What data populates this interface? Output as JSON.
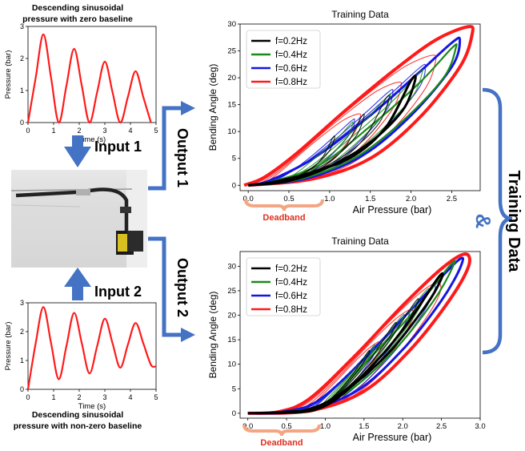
{
  "colors": {
    "red": "#ff1a1a",
    "black": "#000000",
    "green": "#1a8a1a",
    "blue": "#1515e0",
    "arrow_blue": "#4472c4",
    "deadband": "#f4a582",
    "deadband_text": "#e0301e"
  },
  "input1": {
    "caption": [
      "Descending sinusoidal",
      "pressure with zero baseline"
    ],
    "label": "Input 1"
  },
  "input2": {
    "caption": [
      "Descending sinusoidal",
      "pressure with non-zero baseline"
    ],
    "label": "Input 2"
  },
  "output1_label": "Output 1",
  "output2_label": "Output 2",
  "side_label": "Training Data",
  "ampersand": "&",
  "deadband_label": "Deadband",
  "photo": {
    "icon": "soft-actuator-photo"
  },
  "chart_data": [
    {
      "type": "line",
      "id": "input1",
      "xlabel": "Time (s)",
      "ylabel": "Pressure (bar)",
      "xlim": [
        0,
        5
      ],
      "ylim": [
        0,
        3
      ],
      "xticks": [
        "0",
        "1",
        "2",
        "3",
        "4",
        "5"
      ],
      "yticks": [
        "0",
        "1",
        "2",
        "3"
      ],
      "series": [
        {
          "x": [
            0,
            0.3,
            0.6,
            0.9,
            1.2,
            1.5,
            1.8,
            2.1,
            2.4,
            2.7,
            3.0,
            3.3,
            3.6,
            3.9,
            4.2,
            4.5,
            4.8
          ],
          "y": [
            0,
            1.4,
            2.75,
            1.4,
            0,
            1.15,
            2.3,
            1.15,
            0,
            0.95,
            1.9,
            0.95,
            0,
            0.8,
            1.6,
            0.8,
            0
          ]
        }
      ]
    },
    {
      "type": "line",
      "id": "input2",
      "xlabel": "Time (s)",
      "ylabel": "Pressure (bar)",
      "xlim": [
        0,
        5
      ],
      "ylim": [
        0,
        3
      ],
      "xticks": [
        "0",
        "1",
        "2",
        "3",
        "4",
        "5"
      ],
      "yticks": [
        "0",
        "1",
        "2",
        "3"
      ],
      "series": [
        {
          "x": [
            0,
            0.3,
            0.6,
            0.9,
            1.2,
            1.5,
            1.8,
            2.1,
            2.4,
            2.7,
            3.0,
            3.3,
            3.6,
            3.9,
            4.2,
            4.5,
            4.8,
            5.0
          ],
          "y": [
            0,
            1.6,
            2.85,
            1.6,
            0.35,
            1.5,
            2.65,
            1.6,
            0.55,
            1.5,
            2.45,
            1.6,
            0.75,
            1.55,
            2.3,
            1.6,
            0.85,
            0.8
          ]
        }
      ]
    },
    {
      "type": "line",
      "id": "output1",
      "title": "Training Data",
      "xlabel": "Air Pressure (bar)",
      "ylabel": "Bending Angle (deg)",
      "xlim": [
        -0.1,
        2.85
      ],
      "ylim": [
        -1,
        30
      ],
      "xticks": [
        0.0,
        0.5,
        1.0,
        1.5,
        2.0,
        2.5
      ],
      "yticks": [
        0,
        5,
        10,
        15,
        20,
        25,
        30
      ],
      "legend": "top-left",
      "series": [
        {
          "name": "f=0.2Hz",
          "color": "black",
          "width": 3,
          "loop": [
            [
              0,
              0
            ],
            [
              0.3,
              0.6
            ],
            [
              0.8,
              2.5
            ],
            [
              1.3,
              5.5
            ],
            [
              1.7,
              11
            ],
            [
              2.0,
              19.5
            ],
            [
              2.05,
              19.5
            ],
            [
              1.9,
              14
            ],
            [
              1.5,
              8
            ],
            [
              1.0,
              3.5
            ],
            [
              0.5,
              0.8
            ],
            [
              0,
              0
            ]
          ]
        },
        {
          "name": "f=0.4Hz",
          "color": "green",
          "width": 2.2,
          "loop": [
            [
              0,
              0
            ],
            [
              0.3,
              0.7
            ],
            [
              0.9,
              4
            ],
            [
              1.5,
              11
            ],
            [
              2.1,
              19
            ],
            [
              2.5,
              25.5
            ],
            [
              2.55,
              25.5
            ],
            [
              2.4,
              20
            ],
            [
              1.9,
              12
            ],
            [
              1.3,
              5
            ],
            [
              0.6,
              1
            ],
            [
              0,
              0
            ]
          ]
        },
        {
          "name": "f=0.6Hz",
          "color": "blue",
          "width": 3,
          "loop": [
            [
              0,
              0
            ],
            [
              0.25,
              0.8
            ],
            [
              0.8,
              5
            ],
            [
              1.5,
              13
            ],
            [
              2.1,
              21
            ],
            [
              2.5,
              26.5
            ],
            [
              2.6,
              27
            ],
            [
              2.5,
              22
            ],
            [
              2.0,
              13
            ],
            [
              1.4,
              5.5
            ],
            [
              0.7,
              1.2
            ],
            [
              0,
              0
            ]
          ]
        },
        {
          "name": "f=0.8Hz",
          "color": "red",
          "width": 4,
          "loop": [
            [
              -0.05,
              0
            ],
            [
              0.2,
              1.5
            ],
            [
              0.6,
              6
            ],
            [
              1.2,
              14
            ],
            [
              1.8,
              21.5
            ],
            [
              2.3,
              27
            ],
            [
              2.7,
              29.5
            ],
            [
              2.75,
              28
            ],
            [
              2.6,
              22
            ],
            [
              2.1,
              12.5
            ],
            [
              1.5,
              5
            ],
            [
              0.8,
              1.2
            ],
            [
              0,
              0
            ]
          ]
        }
      ]
    },
    {
      "type": "line",
      "id": "output2",
      "title": "Training Data",
      "xlabel": "Air Pressure (bar)",
      "ylabel": "Bending Angle (deg)",
      "xlim": [
        -0.1,
        3.0
      ],
      "ylim": [
        -1,
        33
      ],
      "xticks": [
        0.0,
        0.5,
        1.0,
        1.5,
        2.0,
        2.5,
        3.0
      ],
      "yticks": [
        0,
        5,
        10,
        15,
        20,
        25,
        30
      ],
      "legend": "top-left",
      "series": [
        {
          "name": "f=0.2Hz",
          "color": "black",
          "width": 3,
          "loop": [
            [
              0,
              0
            ],
            [
              0.5,
              0.3
            ],
            [
              1.0,
              1.5
            ],
            [
              1.5,
              8
            ],
            [
              2.0,
              17
            ],
            [
              2.45,
              27.5
            ],
            [
              2.5,
              27.5
            ],
            [
              2.3,
              22
            ],
            [
              1.8,
              12
            ],
            [
              1.2,
              4
            ],
            [
              0.7,
              0.5
            ],
            [
              0,
              0
            ]
          ]
        },
        {
          "name": "f=0.4Hz",
          "color": "green",
          "width": 2.2,
          "loop": [
            [
              0,
              0
            ],
            [
              0.5,
              0.3
            ],
            [
              1.0,
              2
            ],
            [
              1.5,
              10
            ],
            [
              2.1,
              20
            ],
            [
              2.6,
              30
            ],
            [
              2.65,
              30
            ],
            [
              2.4,
              23
            ],
            [
              1.9,
              13
            ],
            [
              1.3,
              4.5
            ],
            [
              0.7,
              0.5
            ],
            [
              0,
              0
            ]
          ]
        },
        {
          "name": "f=0.6Hz",
          "color": "blue",
          "width": 3,
          "loop": [
            [
              0,
              0
            ],
            [
              0.45,
              0.3
            ],
            [
              0.9,
              2.5
            ],
            [
              1.5,
              11
            ],
            [
              2.1,
              21
            ],
            [
              2.7,
              31
            ],
            [
              2.75,
              30
            ],
            [
              2.5,
              23
            ],
            [
              2.0,
              13
            ],
            [
              1.4,
              4.5
            ],
            [
              0.7,
              0.5
            ],
            [
              0,
              0
            ]
          ]
        },
        {
          "name": "f=0.8Hz",
          "color": "red",
          "width": 4,
          "loop": [
            [
              0,
              0
            ],
            [
              0.4,
              0.3
            ],
            [
              0.8,
              3
            ],
            [
              1.4,
              12
            ],
            [
              2.0,
              22
            ],
            [
              2.5,
              29.5
            ],
            [
              2.8,
              32.5
            ],
            [
              2.85,
              30
            ],
            [
              2.6,
              23
            ],
            [
              2.1,
              13
            ],
            [
              1.5,
              4.5
            ],
            [
              0.8,
              0.5
            ],
            [
              0,
              0
            ]
          ]
        }
      ]
    }
  ]
}
